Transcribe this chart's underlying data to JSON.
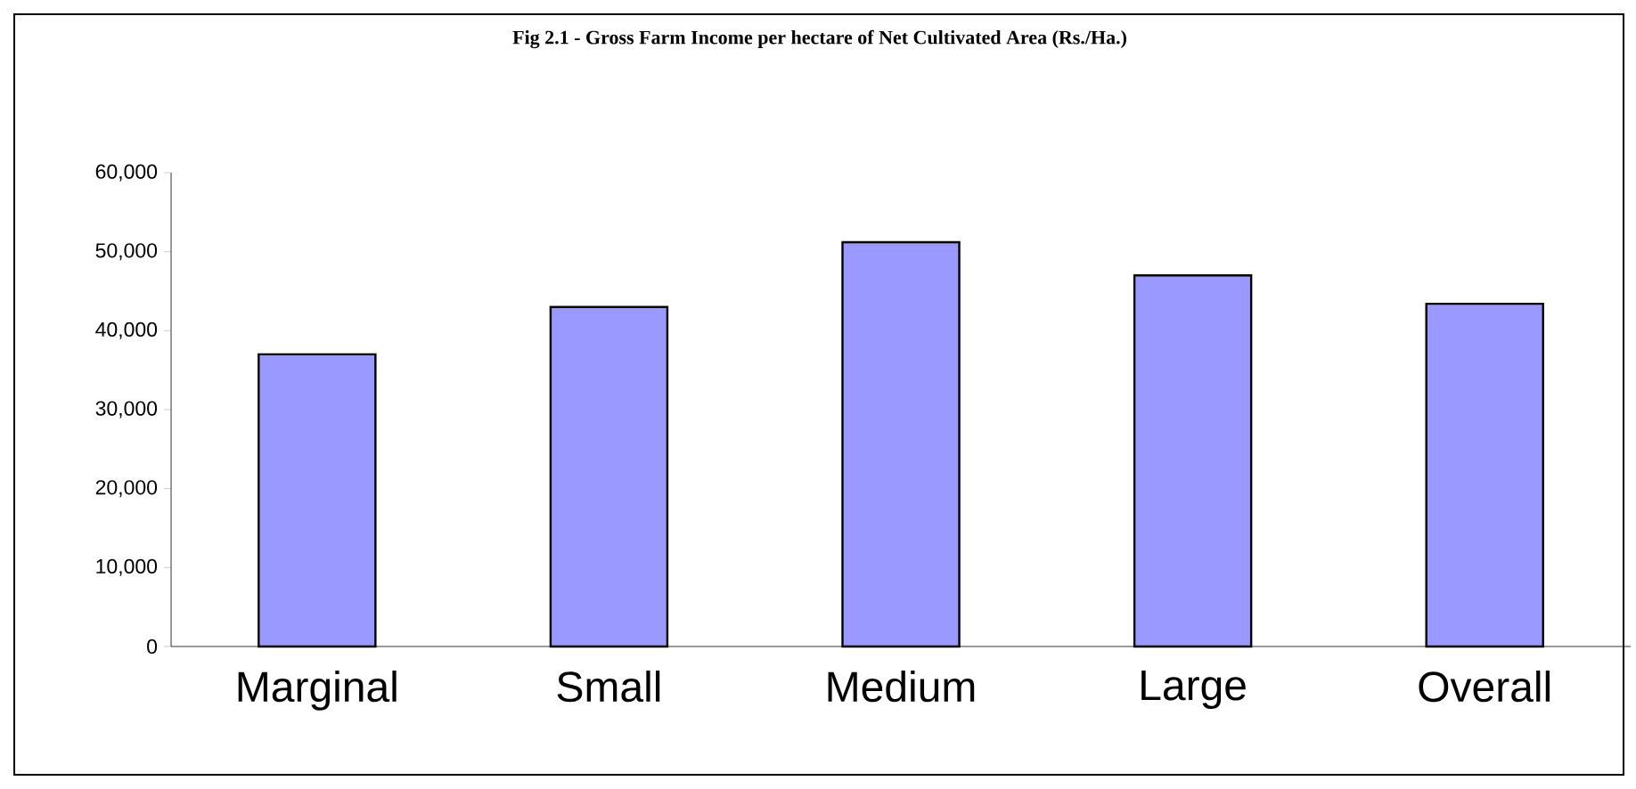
{
  "chart_data": {
    "type": "bar",
    "title": "Fig 2.1 - Gross Farm Income per hectare of Net Cultivated Area (Rs./Ha.)",
    "categories": [
      "Marginal",
      "Small",
      "Medium",
      "Large",
      "Overall"
    ],
    "values": [
      37000,
      43000,
      51200,
      47000,
      43400
    ],
    "color": "#9999ff",
    "ylim": [
      0,
      60000
    ],
    "yticks": [
      {
        "value": 0,
        "label": "0"
      },
      {
        "value": 10000,
        "label": "10,000"
      },
      {
        "value": 20000,
        "label": "20,000"
      },
      {
        "value": 30000,
        "label": "30,000"
      },
      {
        "value": 40000,
        "label": "40,000"
      },
      {
        "value": 50000,
        "label": "50,000"
      },
      {
        "value": 60000,
        "label": "60,000"
      }
    ],
    "grid": false
  }
}
